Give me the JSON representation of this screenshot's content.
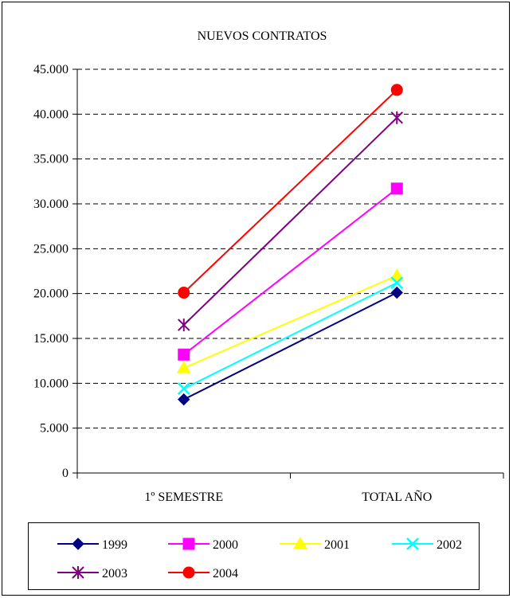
{
  "chart_data": {
    "type": "line",
    "title": "NUEVOS CONTRATOS",
    "categories": [
      "1º SEMESTRE",
      "TOTAL AÑO"
    ],
    "ylim": [
      0,
      45000
    ],
    "yticks": [
      "0",
      "5.000",
      "10.000",
      "15.000",
      "20.000",
      "25.000",
      "30.000",
      "35.000",
      "40.000",
      "45.000"
    ],
    "ytick_values": [
      0,
      5000,
      10000,
      15000,
      20000,
      25000,
      30000,
      35000,
      40000,
      45000
    ],
    "grid": "horizontal dashed",
    "legend_position": "bottom",
    "series": [
      {
        "name": "1999",
        "values": [
          8200,
          20100
        ],
        "color": "#000080",
        "marker": "diamond"
      },
      {
        "name": "2000",
        "values": [
          13200,
          31700
        ],
        "color": "#ff00ff",
        "marker": "square"
      },
      {
        "name": "2001",
        "values": [
          11700,
          22000
        ],
        "color": "#ffff00",
        "marker": "triangle"
      },
      {
        "name": "2002",
        "values": [
          9400,
          21200
        ],
        "color": "#00ffff",
        "marker": "x"
      },
      {
        "name": "2003",
        "values": [
          16500,
          39600
        ],
        "color": "#800080",
        "marker": "asterisk"
      },
      {
        "name": "2004",
        "values": [
          20100,
          42700
        ],
        "color": "#ff0000",
        "marker": "circle"
      }
    ]
  }
}
